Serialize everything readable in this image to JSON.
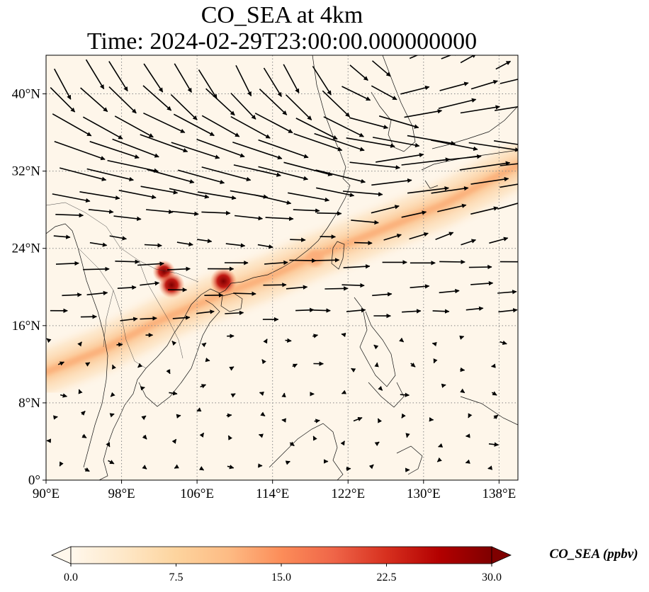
{
  "title": {
    "line1": "CO_SEA at 4km",
    "line2": "Time: 2024-02-29T23:00:00.000000000"
  },
  "map": {
    "projection": "PlateCarree",
    "lon_range": [
      90,
      140
    ],
    "lat_range": [
      0,
      44
    ],
    "gridlines": "dotted",
    "lat_ticks": [
      {
        "value": 0,
        "label": "0°"
      },
      {
        "value": 8,
        "label": "8°N"
      },
      {
        "value": 16,
        "label": "16°N"
      },
      {
        "value": 24,
        "label": "24°N"
      },
      {
        "value": 32,
        "label": "32°N"
      },
      {
        "value": 40,
        "label": "40°N"
      }
    ],
    "lon_ticks": [
      {
        "value": 90,
        "label": "90°E"
      },
      {
        "value": 98,
        "label": "98°E"
      },
      {
        "value": 106,
        "label": "106°E"
      },
      {
        "value": 114,
        "label": "114°E"
      },
      {
        "value": 122,
        "label": "122°E"
      },
      {
        "value": 130,
        "label": "130°E"
      },
      {
        "value": 138,
        "label": "138°E"
      }
    ],
    "plume_band": [
      {
        "lon": 90,
        "lat": 11.2
      },
      {
        "lon": 96,
        "lat": 13.5
      },
      {
        "lon": 102,
        "lat": 16.5
      },
      {
        "lon": 108,
        "lat": 19.0
      },
      {
        "lon": 114,
        "lat": 21.2
      },
      {
        "lon": 118,
        "lat": 23.0
      },
      {
        "lon": 124,
        "lat": 25.3
      },
      {
        "lon": 132,
        "lat": 28.5
      },
      {
        "lon": 140,
        "lat": 32.6
      }
    ],
    "hotspots": [
      {
        "lon": 102.5,
        "lat": 21.6,
        "value": 22
      },
      {
        "lon": 103.3,
        "lat": 20.2,
        "value": 27
      },
      {
        "lon": 108.8,
        "lat": 20.6,
        "value": 28
      },
      {
        "lon": 118.5,
        "lat": 23.0,
        "value": 12
      }
    ],
    "wind_field": {
      "description_flow": "westerly jet aloft, weak flow south of 16°N",
      "vector_color": "#000000"
    }
  },
  "colorbar": {
    "label": "CO_SEA (ppbv)",
    "min": 0.0,
    "max": 30.0,
    "ticks": [
      "0.0",
      "7.5",
      "15.0",
      "22.5",
      "30.0"
    ],
    "extend": "both",
    "cmap": "OrRd",
    "stops": [
      "#fff7ec",
      "#fee8c8",
      "#fdd49e",
      "#fdbb84",
      "#fc8d59",
      "#ef6548",
      "#d7301f",
      "#b30000",
      "#7f0000"
    ]
  }
}
